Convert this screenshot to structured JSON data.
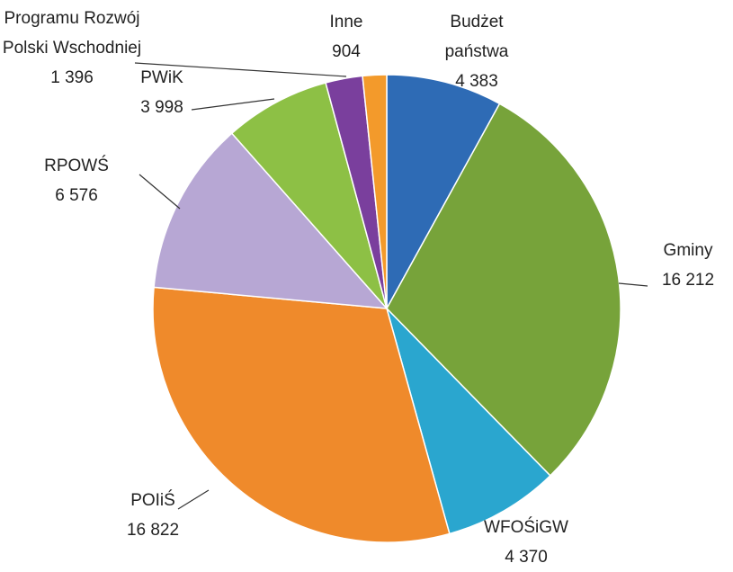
{
  "chart_data": {
    "type": "pie",
    "categories": [
      "Budżet państwa",
      "Gminy",
      "WFOŚiGW",
      "POIiŚ",
      "RPOWŚ",
      "PWiK",
      "Programu Rozwój Polski Wschodniej",
      "Inne"
    ],
    "values": [
      4383,
      16212,
      4370,
      16822,
      6576,
      3998,
      1396,
      904
    ],
    "value_labels": [
      "4 383",
      "16 212",
      "4 370",
      "16 822",
      "6 576",
      "3 998",
      "1 396",
      "904"
    ],
    "colors": [
      "#2e6bb5",
      "#77a33a",
      "#2aa6cf",
      "#ef8a2b",
      "#b7a7d4",
      "#8dc045",
      "#7a3f9d",
      "#f39a2b"
    ]
  }
}
